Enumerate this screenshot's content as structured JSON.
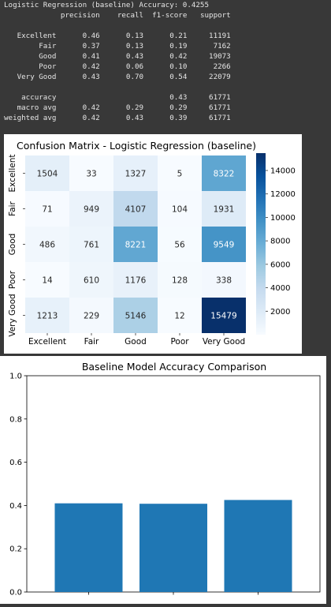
{
  "report": {
    "header_line": "Logistic Regression (baseline) Accuracy: 0.4255",
    "columns": [
      "precision",
      "recall",
      "f1-score",
      "support"
    ],
    "rows": [
      {
        "label": "Excellent",
        "precision": "0.46",
        "recall": "0.13",
        "f1": "0.21",
        "support": "11191"
      },
      {
        "label": "Fair",
        "precision": "0.37",
        "recall": "0.13",
        "f1": "0.19",
        "support": "7162"
      },
      {
        "label": "Good",
        "precision": "0.41",
        "recall": "0.43",
        "f1": "0.42",
        "support": "19073"
      },
      {
        "label": "Poor",
        "precision": "0.42",
        "recall": "0.06",
        "f1": "0.10",
        "support": "2266"
      },
      {
        "label": "Very Good",
        "precision": "0.43",
        "recall": "0.70",
        "f1": "0.54",
        "support": "22079"
      }
    ],
    "summary": [
      {
        "label": "accuracy",
        "precision": "",
        "recall": "",
        "f1": "0.43",
        "support": "61771"
      },
      {
        "label": "macro avg",
        "precision": "0.42",
        "recall": "0.29",
        "f1": "0.29",
        "support": "61771"
      },
      {
        "label": "weighted avg",
        "precision": "0.42",
        "recall": "0.43",
        "f1": "0.39",
        "support": "61771"
      }
    ]
  },
  "chart_data": [
    {
      "type": "heatmap",
      "title": "Confusion Matrix - Logistic Regression (baseline)",
      "xlabel": "",
      "ylabel": "",
      "x_categories": [
        "Excellent",
        "Fair",
        "Good",
        "Poor",
        "Very Good"
      ],
      "y_categories": [
        "Excellent",
        "Fair",
        "Good",
        "Poor",
        "Very Good"
      ],
      "matrix": [
        [
          1504,
          33,
          1327,
          5,
          8322
        ],
        [
          71,
          949,
          4107,
          104,
          1931
        ],
        [
          486,
          761,
          8221,
          56,
          9549
        ],
        [
          14,
          610,
          1176,
          128,
          338
        ],
        [
          1213,
          229,
          5146,
          12,
          15479
        ]
      ],
      "colormap": "Blues",
      "colorbar_range": [
        0,
        15479
      ],
      "colorbar_ticks": [
        2000,
        4000,
        6000,
        8000,
        10000,
        12000,
        14000
      ]
    },
    {
      "type": "bar",
      "title": "Baseline Model Accuracy Comparison",
      "xlabel": "",
      "ylabel": "",
      "categories": [
        "",
        "",
        ""
      ],
      "values": [
        0.41,
        0.408,
        0.4255
      ],
      "ylim": [
        0,
        1
      ],
      "yticks": [
        "0.0",
        "0.2",
        "0.4",
        "0.6",
        "0.8",
        "1.0"
      ],
      "bar_color": "#1f77b4"
    }
  ]
}
